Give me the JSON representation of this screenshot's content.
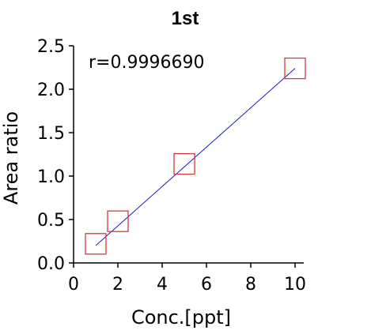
{
  "chart_data": {
    "type": "scatter",
    "title": "1st",
    "xlabel": "Conc.[ppt]",
    "ylabel": "Area ratio",
    "xlim": [
      0,
      10
    ],
    "ylim": [
      0,
      2.5
    ],
    "xticks": [
      "0",
      "2",
      "4",
      "6",
      "8",
      "10"
    ],
    "yticks": [
      "0.0",
      "0.5",
      "1.0",
      "1.5",
      "2.0",
      "2.5"
    ],
    "annotation": "r=0.9996690",
    "grid": false,
    "points": [
      {
        "x": 1,
        "y": 0.22
      },
      {
        "x": 2,
        "y": 0.48
      },
      {
        "x": 5,
        "y": 1.14
      },
      {
        "x": 10,
        "y": 2.24
      }
    ],
    "fit_line": {
      "x": [
        1,
        10
      ],
      "y": [
        0.2,
        2.24
      ]
    },
    "colors": {
      "marker": "#d43a3a",
      "fit_line": "#1a1acc",
      "axis": "#000000"
    }
  }
}
